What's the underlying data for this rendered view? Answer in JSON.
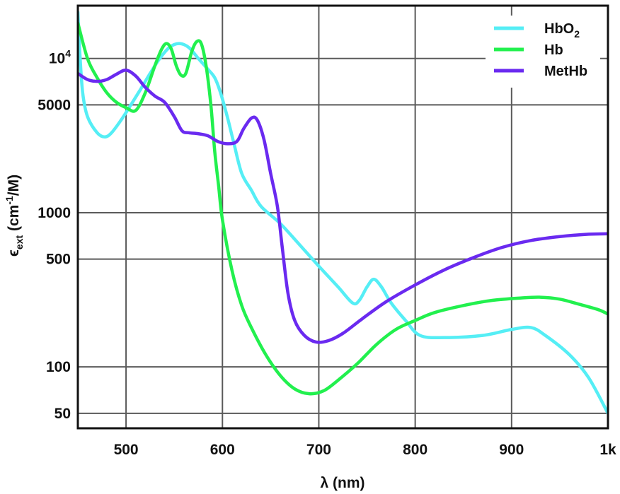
{
  "chart_data": {
    "type": "line",
    "xlabel": "λ (nm)",
    "ylabel": "ϵext (cm⁻¹/M)",
    "xlim": [
      450,
      1000
    ],
    "ylim": [
      40,
      22000
    ],
    "y_scale": "log",
    "grid": true,
    "legend_position": "top-right",
    "x_ticks": [
      500,
      600,
      700,
      800,
      900,
      1000
    ],
    "x_tick_labels": [
      "500",
      "600",
      "700",
      "800",
      "900",
      "1k"
    ],
    "y_ticks": [
      50,
      100,
      500,
      1000,
      5000,
      10000
    ],
    "y_tick_labels": [
      "50",
      "100",
      "500",
      "1000",
      "5000",
      "10^4"
    ],
    "series": [
      {
        "name": "HbO2",
        "label_main": "HbO",
        "label_sub": "2",
        "color": "#55eef5",
        "points": [
          [
            450,
            20000
          ],
          [
            452,
            11000
          ],
          [
            455,
            6000
          ],
          [
            460,
            4200
          ],
          [
            470,
            3300
          ],
          [
            478,
            3100
          ],
          [
            485,
            3300
          ],
          [
            495,
            4000
          ],
          [
            505,
            5000
          ],
          [
            515,
            6300
          ],
          [
            525,
            8000
          ],
          [
            535,
            10000
          ],
          [
            545,
            11800
          ],
          [
            555,
            12500
          ],
          [
            565,
            11800
          ],
          [
            575,
            10000
          ],
          [
            585,
            8500
          ],
          [
            592,
            7500
          ],
          [
            598,
            6000
          ],
          [
            605,
            4200
          ],
          [
            612,
            2800
          ],
          [
            620,
            1800
          ],
          [
            630,
            1400
          ],
          [
            640,
            1100
          ],
          [
            660,
            850
          ],
          [
            680,
            620
          ],
          [
            700,
            450
          ],
          [
            720,
            330
          ],
          [
            735,
            260
          ],
          [
            742,
            270
          ],
          [
            750,
            330
          ],
          [
            757,
            370
          ],
          [
            765,
            330
          ],
          [
            775,
            260
          ],
          [
            790,
            200
          ],
          [
            805,
            160
          ],
          [
            830,
            155
          ],
          [
            870,
            160
          ],
          [
            900,
            175
          ],
          [
            920,
            180
          ],
          [
            935,
            160
          ],
          [
            960,
            120
          ],
          [
            980,
            85
          ],
          [
            1000,
            50
          ]
        ]
      },
      {
        "name": "Hb",
        "label_main": "Hb",
        "label_sub": "",
        "color": "#22f04e",
        "points": [
          [
            450,
            17000
          ],
          [
            460,
            10000
          ],
          [
            470,
            7500
          ],
          [
            480,
            6000
          ],
          [
            490,
            5200
          ],
          [
            500,
            4800
          ],
          [
            510,
            4600
          ],
          [
            520,
            6000
          ],
          [
            530,
            9000
          ],
          [
            537,
            11500
          ],
          [
            542,
            12500
          ],
          [
            547,
            11500
          ],
          [
            552,
            9000
          ],
          [
            557,
            7800
          ],
          [
            562,
            8000
          ],
          [
            568,
            11000
          ],
          [
            573,
            12800
          ],
          [
            578,
            12500
          ],
          [
            583,
            9000
          ],
          [
            588,
            5000
          ],
          [
            592,
            2500
          ],
          [
            596,
            1500
          ],
          [
            600,
            900
          ],
          [
            610,
            420
          ],
          [
            620,
            250
          ],
          [
            630,
            180
          ],
          [
            645,
            120
          ],
          [
            660,
            88
          ],
          [
            675,
            72
          ],
          [
            690,
            67
          ],
          [
            705,
            70
          ],
          [
            720,
            82
          ],
          [
            740,
            105
          ],
          [
            760,
            140
          ],
          [
            780,
            175
          ],
          [
            800,
            200
          ],
          [
            820,
            225
          ],
          [
            850,
            250
          ],
          [
            880,
            270
          ],
          [
            910,
            280
          ],
          [
            930,
            283
          ],
          [
            950,
            275
          ],
          [
            970,
            255
          ],
          [
            990,
            235
          ],
          [
            1000,
            220
          ]
        ]
      },
      {
        "name": "MetHb",
        "label_main": "MetHb",
        "label_sub": "",
        "color": "#6a2af0",
        "points": [
          [
            450,
            8000
          ],
          [
            460,
            7300
          ],
          [
            470,
            7100
          ],
          [
            480,
            7300
          ],
          [
            490,
            7900
          ],
          [
            500,
            8400
          ],
          [
            510,
            7700
          ],
          [
            520,
            6500
          ],
          [
            530,
            5700
          ],
          [
            540,
            5200
          ],
          [
            550,
            4200
          ],
          [
            558,
            3400
          ],
          [
            565,
            3300
          ],
          [
            575,
            3250
          ],
          [
            585,
            3150
          ],
          [
            595,
            2900
          ],
          [
            605,
            2800
          ],
          [
            615,
            2900
          ],
          [
            622,
            3500
          ],
          [
            630,
            4100
          ],
          [
            636,
            4000
          ],
          [
            643,
            3000
          ],
          [
            650,
            1800
          ],
          [
            657,
            1100
          ],
          [
            662,
            600
          ],
          [
            668,
            300
          ],
          [
            675,
            200
          ],
          [
            685,
            160
          ],
          [
            697,
            145
          ],
          [
            710,
            148
          ],
          [
            725,
            165
          ],
          [
            745,
            205
          ],
          [
            770,
            265
          ],
          [
            800,
            340
          ],
          [
            830,
            425
          ],
          [
            860,
            510
          ],
          [
            890,
            595
          ],
          [
            920,
            660
          ],
          [
            950,
            700
          ],
          [
            980,
            725
          ],
          [
            1000,
            730
          ]
        ]
      }
    ]
  }
}
